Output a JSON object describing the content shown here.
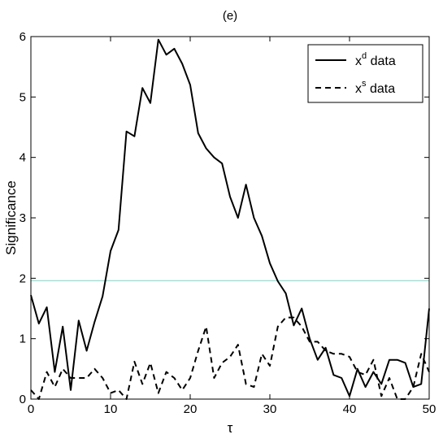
{
  "chart_data": {
    "type": "line",
    "title": "(e)",
    "xlabel": "τ",
    "ylabel": "Significance",
    "xlim": [
      0,
      50
    ],
    "ylim": [
      0,
      6
    ],
    "xticks": [
      "0",
      "10",
      "20",
      "30",
      "40",
      "50"
    ],
    "yticks": [
      "0",
      "1",
      "2",
      "3",
      "4",
      "5",
      "6"
    ],
    "grid": false,
    "legend_position": "top-right",
    "threshold": {
      "y": 1.96,
      "color": "#7fe0d0"
    },
    "series": [
      {
        "name_base": "x",
        "name_sup": "d",
        "name_rest": " data",
        "style": "solid",
        "color": "#000000",
        "x": [
          0,
          1,
          2,
          3,
          4,
          5,
          6,
          7,
          8,
          9,
          10,
          11,
          12,
          13,
          14,
          15,
          16,
          17,
          18,
          19,
          20,
          21,
          22,
          23,
          24,
          25,
          26,
          27,
          28,
          29,
          30,
          31,
          32,
          33,
          34,
          35,
          36,
          37,
          38,
          39,
          40,
          41,
          42,
          43,
          44,
          45,
          46,
          47,
          48,
          49,
          50
        ],
        "values": [
          1.72,
          1.25,
          1.52,
          0.45,
          1.2,
          0.15,
          1.3,
          0.8,
          1.28,
          1.7,
          2.45,
          2.8,
          4.43,
          4.35,
          5.15,
          4.9,
          5.95,
          5.7,
          5.8,
          5.55,
          5.2,
          4.4,
          4.15,
          4.0,
          3.9,
          3.35,
          3.0,
          3.55,
          3.0,
          2.7,
          2.25,
          1.95,
          1.75,
          1.22,
          1.5,
          1.0,
          0.65,
          0.85,
          0.4,
          0.35,
          0.05,
          0.5,
          0.2,
          0.45,
          0.25,
          0.65,
          0.65,
          0.6,
          0.2,
          0.25,
          1.5
        ]
      },
      {
        "name_base": "x",
        "name_sup": "s",
        "name_rest": " data",
        "style": "dashed",
        "color": "#000000",
        "x": [
          0,
          1,
          2,
          3,
          4,
          5,
          6,
          7,
          8,
          9,
          10,
          11,
          12,
          13,
          14,
          15,
          16,
          17,
          18,
          19,
          20,
          21,
          22,
          23,
          24,
          25,
          26,
          27,
          28,
          29,
          30,
          31,
          32,
          33,
          34,
          35,
          36,
          37,
          38,
          39,
          40,
          41,
          42,
          43,
          44,
          45,
          46,
          47,
          48,
          49,
          50
        ],
        "values": [
          0.15,
          0.0,
          0.45,
          0.2,
          0.5,
          0.35,
          0.35,
          0.35,
          0.5,
          0.35,
          0.1,
          0.15,
          0.0,
          0.62,
          0.25,
          0.6,
          0.1,
          0.45,
          0.35,
          0.15,
          0.35,
          0.8,
          1.2,
          0.35,
          0.6,
          0.7,
          0.9,
          0.25,
          0.2,
          0.75,
          0.55,
          1.2,
          1.35,
          1.35,
          1.2,
          0.95,
          0.95,
          0.8,
          0.75,
          0.75,
          0.7,
          0.45,
          0.4,
          0.65,
          0.05,
          0.35,
          0.0,
          0.0,
          0.2,
          0.75,
          0.45
        ]
      }
    ]
  }
}
